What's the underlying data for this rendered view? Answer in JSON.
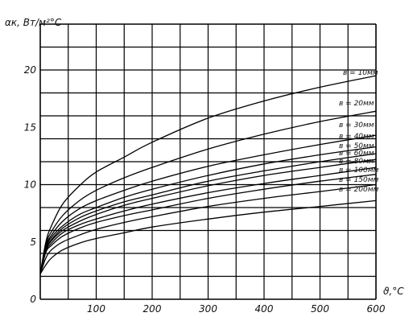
{
  "chart_data": {
    "type": "line",
    "ylabel": "αк, Вт/м²°С",
    "xlabel": "ϑ,°С",
    "x_ticks": [
      "100",
      "200",
      "300",
      "400",
      "500",
      "600"
    ],
    "y_ticks": [
      "0",
      "5",
      "10",
      "15",
      "20"
    ],
    "xlim": [
      0,
      600
    ],
    "ylim": [
      0,
      24
    ],
    "grid": true,
    "series": [
      {
        "name": "в = 10мм",
        "x": [
          0,
          10,
          20,
          40,
          70,
          100,
          150,
          200,
          300,
          400,
          500,
          600
        ],
        "y": [
          2.2,
          5.0,
          6.4,
          8.3,
          9.9,
          11.1,
          12.4,
          13.7,
          15.8,
          17.3,
          18.5,
          19.5
        ]
      },
      {
        "name": "в = 20мм",
        "x": [
          0,
          10,
          20,
          40,
          70,
          100,
          150,
          200,
          300,
          400,
          500,
          600
        ],
        "y": [
          2.2,
          4.8,
          5.9,
          7.3,
          8.6,
          9.5,
          10.6,
          11.5,
          13.1,
          14.4,
          15.5,
          16.4
        ]
      },
      {
        "name": "в = 30мм",
        "x": [
          0,
          10,
          20,
          40,
          70,
          100,
          150,
          200,
          300,
          400,
          500,
          600
        ],
        "y": [
          2.2,
          4.6,
          5.6,
          6.8,
          7.9,
          8.6,
          9.5,
          10.3,
          11.6,
          12.6,
          13.5,
          14.3
        ]
      },
      {
        "name": "в = 40мм",
        "x": [
          0,
          10,
          20,
          40,
          70,
          100,
          150,
          200,
          300,
          400,
          500,
          600
        ],
        "y": [
          2.2,
          4.5,
          5.4,
          6.4,
          7.4,
          8.0,
          8.9,
          9.6,
          10.8,
          11.8,
          12.6,
          13.3
        ]
      },
      {
        "name": "в = 50мм",
        "x": [
          0,
          10,
          20,
          40,
          70,
          100,
          150,
          200,
          300,
          400,
          500,
          600
        ],
        "y": [
          2.2,
          4.4,
          5.2,
          6.2,
          7.1,
          7.7,
          8.5,
          9.1,
          10.3,
          11.2,
          12.0,
          12.7
        ]
      },
      {
        "name": "в = 60мм",
        "x": [
          0,
          10,
          20,
          40,
          70,
          100,
          150,
          200,
          300,
          400,
          500,
          600
        ],
        "y": [
          2.2,
          4.3,
          5.1,
          6.0,
          6.8,
          7.4,
          8.2,
          8.8,
          9.9,
          10.8,
          11.5,
          12.2
        ]
      },
      {
        "name": "в = 80мм",
        "x": [
          0,
          10,
          20,
          40,
          70,
          100,
          150,
          200,
          300,
          400,
          500,
          600
        ],
        "y": [
          2.2,
          4.2,
          4.9,
          5.8,
          6.5,
          7.0,
          7.7,
          8.3,
          9.3,
          10.1,
          10.8,
          11.5
        ]
      },
      {
        "name": "в = 100мм",
        "x": [
          0,
          10,
          20,
          40,
          70,
          100,
          150,
          200,
          300,
          400,
          500,
          600
        ],
        "y": [
          2.2,
          4.1,
          4.7,
          5.5,
          6.2,
          6.7,
          7.3,
          7.8,
          8.8,
          9.6,
          10.3,
          10.9
        ]
      },
      {
        "name": "в = 150мм",
        "x": [
          0,
          10,
          20,
          40,
          70,
          100,
          150,
          200,
          300,
          400,
          500,
          600
        ],
        "y": [
          2.2,
          3.6,
          4.3,
          5.0,
          5.6,
          6.1,
          6.7,
          7.2,
          8.1,
          8.8,
          9.4,
          10.0
        ]
      },
      {
        "name": "в = 200мм",
        "x": [
          0,
          10,
          20,
          40,
          70,
          100,
          150,
          200,
          300,
          400,
          500,
          600
        ],
        "y": [
          2.2,
          3.0,
          3.6,
          4.3,
          4.9,
          5.3,
          5.8,
          6.3,
          7.0,
          7.6,
          8.1,
          8.6
        ]
      }
    ]
  }
}
